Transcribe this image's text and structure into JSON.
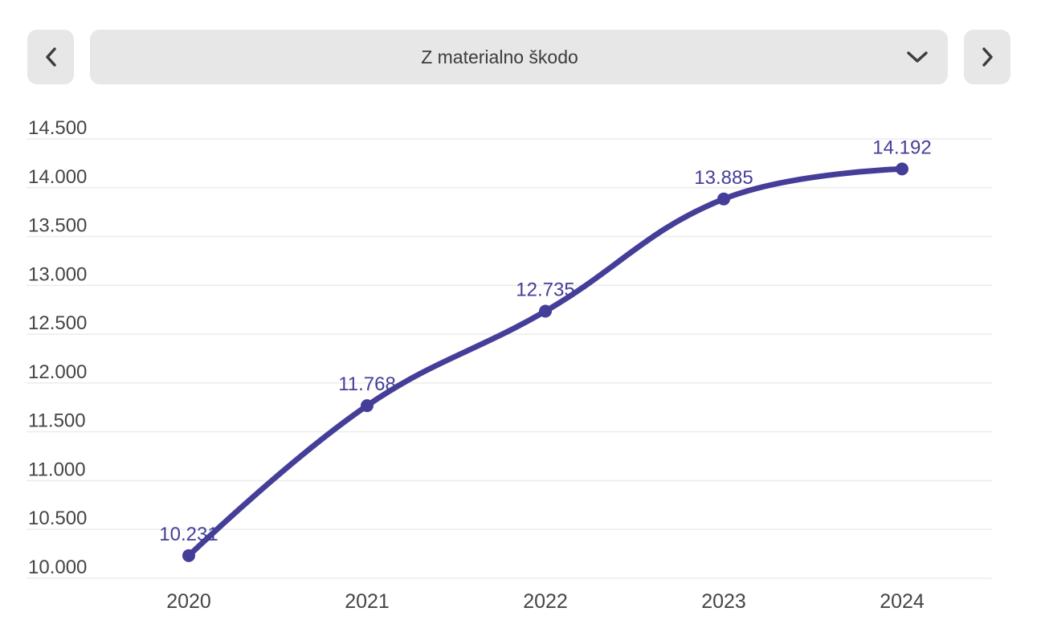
{
  "header": {
    "selected_option": "Z materialno škodo",
    "prev_icon": "chevron-left",
    "next_icon": "chevron-right",
    "dropdown_icon": "chevron-down"
  },
  "colors": {
    "accent": "#453E99",
    "control_bg": "#e7e7e7",
    "control_text": "#3c3c3c",
    "icon": "#3d3d3d",
    "axis_text": "#454545",
    "gridline": "#ececec",
    "background": "#ffffff"
  },
  "chart_data": {
    "type": "line",
    "title": "Z materialno škodo",
    "categories": [
      "2020",
      "2021",
      "2022",
      "2023",
      "2024"
    ],
    "values": [
      10231,
      11768,
      12735,
      13885,
      14192
    ],
    "point_labels": [
      "10.231",
      "11.768",
      "12.735",
      "13.885",
      "14.192"
    ],
    "y_tick_values": [
      10000,
      10500,
      11000,
      11500,
      12000,
      12500,
      13000,
      13500,
      14000,
      14500
    ],
    "y_tick_labels": [
      "10.000",
      "10.500",
      "11.000",
      "11.500",
      "12.000",
      "12.500",
      "13.000",
      "13.500",
      "14.000",
      "14.500"
    ],
    "ylim": [
      10000,
      14500
    ],
    "xlabel": "",
    "ylabel": "",
    "grid": true,
    "legend": null,
    "smooth": true,
    "line_color": "#453E99",
    "point_color": "#453E99",
    "label_color": "#453E99"
  }
}
